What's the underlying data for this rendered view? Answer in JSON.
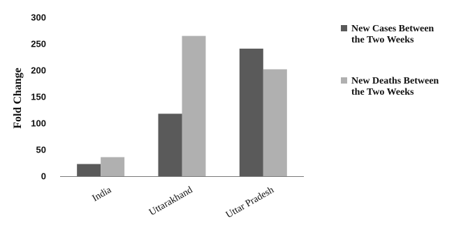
{
  "chart_data": {
    "type": "bar",
    "title": "",
    "xlabel": "",
    "ylabel": "Fold Change",
    "ylim": [
      0,
      300
    ],
    "yticks": [
      0,
      50,
      100,
      150,
      200,
      250,
      300
    ],
    "grid": false,
    "legend_position": "right",
    "categories": [
      "India",
      "Uttarakhand",
      "Uttar Pradesh"
    ],
    "series": [
      {
        "name": "New Cases Between the Two Weeks",
        "legend_lines": [
          "New Cases Between",
          "the Two Weeks"
        ],
        "color": "#5a5a5a",
        "values": [
          23,
          118,
          241
        ]
      },
      {
        "name": "New Deaths Between the Two Weeks",
        "legend_lines": [
          "New Deaths Between",
          "the Two Weeks"
        ],
        "color": "#b0b0b0",
        "values": [
          36,
          265,
          202
        ]
      }
    ]
  }
}
